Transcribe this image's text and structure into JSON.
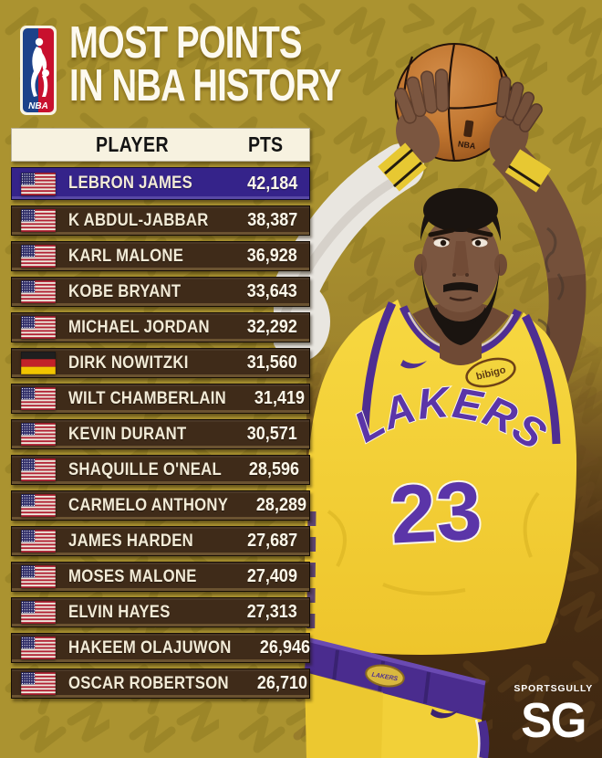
{
  "poster": {
    "title_line1": "MOST POINTS",
    "title_line2": "IN NBA HISTORY",
    "nba_logo_text": "NBA"
  },
  "table": {
    "header": {
      "player": "PLAYER",
      "pts": "PTS"
    },
    "rows": [
      {
        "name": "LEBRON JAMES",
        "pts": "42,184",
        "flag": "us",
        "highlight": true
      },
      {
        "name": "K ABDUL-JABBAR",
        "pts": "38,387",
        "flag": "us",
        "highlight": false
      },
      {
        "name": "KARL MALONE",
        "pts": "36,928",
        "flag": "us",
        "highlight": false
      },
      {
        "name": "KOBE BRYANT",
        "pts": "33,643",
        "flag": "us",
        "highlight": false
      },
      {
        "name": "MICHAEL JORDAN",
        "pts": "32,292",
        "flag": "us",
        "highlight": false
      },
      {
        "name": "DIRK NOWITZKI",
        "pts": "31,560",
        "flag": "de",
        "highlight": false
      },
      {
        "name": "WILT CHAMBERLAIN",
        "pts": "31,419",
        "flag": "us",
        "highlight": false
      },
      {
        "name": "KEVIN DURANT",
        "pts": "30,571",
        "flag": "us",
        "highlight": false
      },
      {
        "name": "SHAQUILLE O'NEAL",
        "pts": "28,596",
        "flag": "us",
        "highlight": false
      },
      {
        "name": "CARMELO ANTHONY",
        "pts": "28,289",
        "flag": "us",
        "highlight": false
      },
      {
        "name": "JAMES HARDEN",
        "pts": "27,687",
        "flag": "us",
        "highlight": false
      },
      {
        "name": "MOSES MALONE",
        "pts": "27,409",
        "flag": "us",
        "highlight": false
      },
      {
        "name": "ELVIN HAYES",
        "pts": "27,313",
        "flag": "us",
        "highlight": false
      },
      {
        "name": "HAKEEM OLAJUWON",
        "pts": "26,946",
        "flag": "us",
        "highlight": false
      },
      {
        "name": "OSCAR ROBERTSON",
        "pts": "26,710",
        "flag": "us",
        "highlight": false
      }
    ]
  },
  "artwork": {
    "jersey_team": "LAKERS",
    "jersey_number": "23",
    "jersey_sponsor": "bibigo",
    "ball_brand": "NBA"
  },
  "brand": {
    "name": "SPORTSGULLY",
    "monogram": "SG"
  },
  "colors": {
    "background_gold": "#ab9330",
    "row_brown": "#3f2b19",
    "highlight_purple": "#35238a",
    "header_cream": "#f7f2e0",
    "jersey_yellow": "#f3cf35",
    "jersey_purple": "#4e2e92",
    "photo_brown": "#452b12"
  },
  "chart_data": {
    "type": "table",
    "title": "Most Points in NBA History",
    "columns": [
      "Player",
      "Points"
    ],
    "rows": [
      [
        "LeBron James",
        42184
      ],
      [
        "K Abdul-Jabbar",
        38387
      ],
      [
        "Karl Malone",
        36928
      ],
      [
        "Kobe Bryant",
        33643
      ],
      [
        "Michael Jordan",
        32292
      ],
      [
        "Dirk Nowitzki",
        31560
      ],
      [
        "Wilt Chamberlain",
        31419
      ],
      [
        "Kevin Durant",
        30571
      ],
      [
        "Shaquille O'Neal",
        28596
      ],
      [
        "Carmelo Anthony",
        28289
      ],
      [
        "James Harden",
        27687
      ],
      [
        "Moses Malone",
        27409
      ],
      [
        "Elvin Hayes",
        27313
      ],
      [
        "Hakeem Olajuwon",
        26946
      ],
      [
        "Oscar Robertson",
        26710
      ]
    ]
  }
}
